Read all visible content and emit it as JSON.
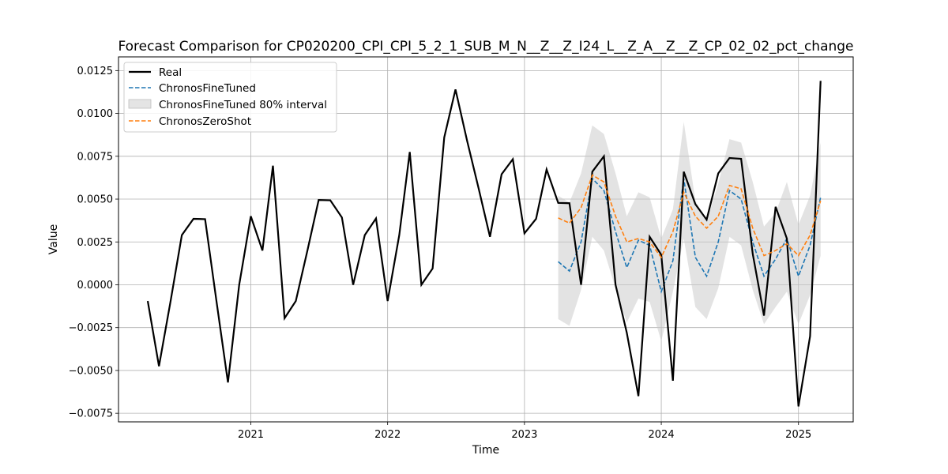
{
  "chart_data": {
    "type": "line",
    "title": "Forecast Comparison for CP020200_CPI_CPI_5_2_1_SUB_M_N__Z__Z_I24_L__Z_A__Z__Z_CP_02_02_pct_change",
    "xlabel": "Time",
    "ylabel": "Value",
    "xlim": [
      "2020-01-14",
      "2025-05-27"
    ],
    "ylim": [
      -0.008,
      0.0133
    ],
    "x_ticks": [
      "2021-01-01",
      "2022-01-01",
      "2023-01-01",
      "2024-01-01",
      "2025-01-01"
    ],
    "x_tick_labels": [
      "2021",
      "2022",
      "2023",
      "2024",
      "2025"
    ],
    "y_ticks": [
      -0.0075,
      -0.005,
      -0.0025,
      0,
      0.0025,
      0.005,
      0.0075,
      0.01,
      0.0125
    ],
    "y_tick_labels": [
      "−0.0075",
      "−0.0050",
      "−0.0025",
      "0.0000",
      "0.0025",
      "0.0050",
      "0.0075",
      "0.0100",
      "0.0125"
    ],
    "grid": true,
    "legend_position": "top-left",
    "legend": [
      "Real",
      "ChronosFineTuned",
      "ChronosFineTuned 80% interval",
      "ChronosZeroShot"
    ],
    "colors": {
      "Real": "#000000",
      "ChronosFineTuned": "#1f77b4",
      "interval": "#d9d9d9",
      "ChronosZeroShot": "#ff7f0e"
    },
    "series": [
      {
        "name": "Real",
        "style": "solid",
        "x": [
          "2020-04-01",
          "2020-05-01",
          "2020-06-01",
          "2020-07-01",
          "2020-08-01",
          "2020-09-01",
          "2020-10-01",
          "2020-11-01",
          "2020-12-01",
          "2021-01-01",
          "2021-02-01",
          "2021-03-01",
          "2021-04-01",
          "2021-05-01",
          "2021-06-01",
          "2021-07-01",
          "2021-08-01",
          "2021-09-01",
          "2021-10-01",
          "2021-11-01",
          "2021-12-01",
          "2022-01-01",
          "2022-02-01",
          "2022-03-01",
          "2022-04-01",
          "2022-05-01",
          "2022-06-01",
          "2022-07-01",
          "2022-08-01",
          "2022-09-01",
          "2022-10-01",
          "2022-11-01",
          "2022-12-01",
          "2023-01-01",
          "2023-02-01",
          "2023-03-01",
          "2023-04-01",
          "2023-05-01",
          "2023-06-01",
          "2023-07-01",
          "2023-08-01",
          "2023-09-01",
          "2023-10-01",
          "2023-11-01",
          "2023-12-01",
          "2024-01-01",
          "2024-02-01",
          "2024-03-01",
          "2024-04-01",
          "2024-05-01",
          "2024-06-01",
          "2024-07-01",
          "2024-08-01",
          "2024-09-01",
          "2024-10-01",
          "2024-11-01",
          "2024-12-01",
          "2025-01-01",
          "2025-02-01",
          "2025-03-01"
        ],
        "values": [
          -0.00095,
          -0.00475,
          -0.00095,
          0.0029,
          0.00385,
          0.00383,
          -0.0009,
          -0.0057,
          0.0,
          0.004,
          0.002,
          0.00695,
          -0.00195,
          -0.00095,
          0.002,
          0.00495,
          0.00493,
          0.00393,
          0.0,
          0.0029,
          0.00387,
          -0.00095,
          0.0029,
          0.00775,
          0.0,
          0.00095,
          0.0086,
          0.0114,
          0.0084,
          0.0056,
          0.0028,
          0.00645,
          0.00733,
          0.003,
          0.00385,
          0.00673,
          0.00478,
          0.00476,
          0.0,
          0.0066,
          0.0075,
          0.0,
          -0.0028,
          -0.0065,
          0.0028,
          0.00175,
          -0.0056,
          0.0066,
          0.0047,
          0.0038,
          0.0065,
          0.0074,
          0.00735,
          0.0018,
          -0.0018,
          0.00455,
          0.0027,
          -0.0071,
          -0.003,
          0.0119
        ]
      },
      {
        "name": "ChronosFineTuned",
        "style": "dashed",
        "x": [
          "2023-04-01",
          "2023-05-01",
          "2023-06-01",
          "2023-07-01",
          "2023-08-01",
          "2023-09-01",
          "2023-10-01",
          "2023-11-01",
          "2023-12-01",
          "2024-01-01",
          "2024-02-01",
          "2024-03-01",
          "2024-04-01",
          "2024-05-01",
          "2024-06-01",
          "2024-07-01",
          "2024-08-01",
          "2024-09-01",
          "2024-10-01",
          "2024-11-01",
          "2024-12-01",
          "2025-01-01",
          "2025-02-01",
          "2025-03-01"
        ],
        "values": [
          0.00135,
          0.0008,
          0.0025,
          0.0062,
          0.0055,
          0.0031,
          0.001,
          0.0026,
          0.0023,
          -0.0004,
          0.0014,
          0.0062,
          0.0016,
          0.0005,
          0.0025,
          0.0055,
          0.005,
          0.0025,
          0.0005,
          0.0015,
          0.0027,
          0.0005,
          0.0023,
          0.0051
        ]
      },
      {
        "name": "ChronosZeroShot",
        "style": "dashed",
        "x": [
          "2023-04-01",
          "2023-05-01",
          "2023-06-01",
          "2023-07-01",
          "2023-08-01",
          "2023-09-01",
          "2023-10-01",
          "2023-11-01",
          "2023-12-01",
          "2024-01-01",
          "2024-02-01",
          "2024-03-01",
          "2024-04-01",
          "2024-05-01",
          "2024-06-01",
          "2024-07-01",
          "2024-08-01",
          "2024-09-01",
          "2024-10-01",
          "2024-11-01",
          "2024-12-01",
          "2025-01-01",
          "2025-02-01",
          "2025-03-01"
        ],
        "values": [
          0.0039,
          0.0036,
          0.0045,
          0.0064,
          0.006,
          0.004,
          0.0025,
          0.0027,
          0.0025,
          0.0016,
          0.0031,
          0.0054,
          0.004,
          0.0033,
          0.004,
          0.0058,
          0.0056,
          0.0033,
          0.0017,
          0.002,
          0.0024,
          0.0017,
          0.0029,
          0.0049
        ]
      }
    ],
    "interval": {
      "name": "ChronosFineTuned 80% interval",
      "x": [
        "2023-04-01",
        "2023-05-01",
        "2023-06-01",
        "2023-07-01",
        "2023-08-01",
        "2023-09-01",
        "2023-10-01",
        "2023-11-01",
        "2023-12-01",
        "2024-01-01",
        "2024-02-01",
        "2024-03-01",
        "2024-04-01",
        "2024-05-01",
        "2024-06-01",
        "2024-07-01",
        "2024-08-01",
        "2024-09-01",
        "2024-10-01",
        "2024-11-01",
        "2024-12-01",
        "2025-01-01",
        "2025-02-01",
        "2025-03-01"
      ],
      "lower": [
        -0.002,
        -0.0024,
        -0.0003,
        0.0028,
        0.002,
        -0.0002,
        -0.0022,
        -0.0008,
        -0.001,
        -0.0033,
        -0.0004,
        0.0027,
        -0.0013,
        -0.002,
        -0.0002,
        0.0028,
        0.0023,
        -0.0003,
        -0.0023,
        -0.0013,
        -0.0004,
        -0.0023,
        -0.0006,
        0.0017
      ],
      "upper": [
        0.0052,
        0.0048,
        0.0065,
        0.0093,
        0.0088,
        0.0065,
        0.004,
        0.0054,
        0.0051,
        0.0027,
        0.0044,
        0.0095,
        0.0049,
        0.0037,
        0.0059,
        0.0085,
        0.0083,
        0.006,
        0.0034,
        0.0042,
        0.006,
        0.0035,
        0.0052,
        0.0083
      ]
    }
  }
}
